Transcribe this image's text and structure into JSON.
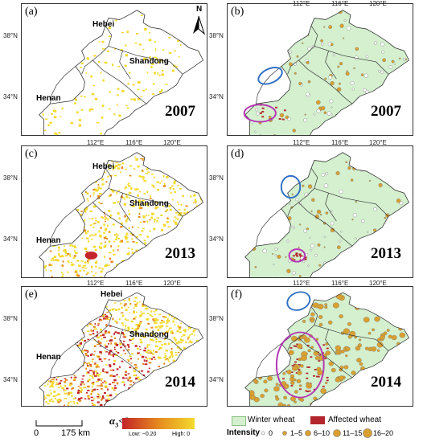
{
  "figure": {
    "panels": [
      {
        "id": "a",
        "label": "(a)",
        "year": "2007",
        "type": "index"
      },
      {
        "id": "b",
        "label": "(b)",
        "year": "2007",
        "type": "points"
      },
      {
        "id": "c",
        "label": "(c)",
        "year": "2013",
        "type": "index"
      },
      {
        "id": "d",
        "label": "(d)",
        "year": "2013",
        "type": "points"
      },
      {
        "id": "e",
        "label": "(e)",
        "year": "2014",
        "type": "index"
      },
      {
        "id": "f",
        "label": "(f)",
        "year": "2014",
        "type": "points"
      }
    ],
    "provinces": {
      "hebei": "Hebei",
      "shandong": "Shandong",
      "henan": "Henan"
    },
    "lon_ticks": [
      "112°E",
      "116°E",
      "120°E"
    ],
    "lat_ticks": [
      "38°N",
      "34°N"
    ],
    "north": "N"
  },
  "legend": {
    "scale_zero": "0",
    "scale_dist": "175 km",
    "index_title": "α",
    "index_sub": "3",
    "index_rel": "<0",
    "low": "Low: −0.20",
    "high": "High: 0",
    "winter_wheat": "Winter wheat",
    "affected_wheat": "Affected wheat",
    "intensity": "Intensity",
    "classes": [
      "0",
      "1–5",
      "6–10",
      "11–15",
      "16–20"
    ]
  },
  "colors": {
    "region_fill": "#ffffff",
    "wheat": "#d4f0cf",
    "affected": "#b3262d",
    "dot": "#d9a030",
    "yellow": "#f3da2e",
    "orange": "#e58a1f",
    "red": "#c4242a",
    "blue_ellipse": "#2f6fc4",
    "purple_ellipse": "#b535b5"
  }
}
